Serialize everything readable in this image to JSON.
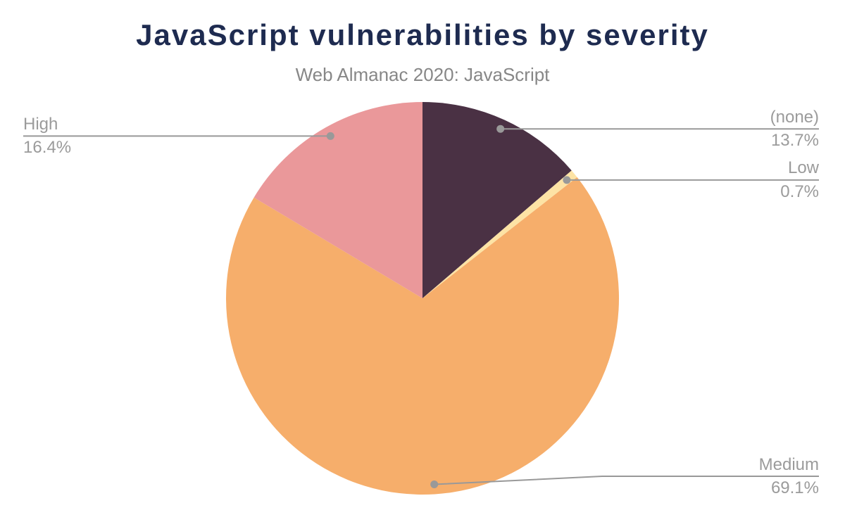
{
  "header": {
    "title": "JavaScript vulnerabilities by severity",
    "subtitle": "Web Almanac 2020: JavaScript"
  },
  "chart_data": {
    "type": "pie",
    "title": "JavaScript vulnerabilities by severity",
    "subtitle": "Web Almanac 2020: JavaScript",
    "direction": "clockwise",
    "start_angle_deg": 0,
    "legend_position": "none",
    "label_style": "outside-callout",
    "slices": [
      {
        "label": "(none)",
        "value_pct": 13.7,
        "display": "13.7%",
        "color": "#4A3144"
      },
      {
        "label": "Low",
        "value_pct": 0.7,
        "display": "0.7%",
        "color": "#FDE3A5"
      },
      {
        "label": "Medium",
        "value_pct": 69.1,
        "display": "69.1%",
        "color": "#F6AE6B"
      },
      {
        "label": "High",
        "value_pct": 16.4,
        "display": "16.4%",
        "color": "#EA989A"
      }
    ],
    "colors": {
      "title": "#1E2B50",
      "subtitle": "#878787",
      "label_text": "#9B9B9B",
      "callout_line": "#999999",
      "background": "#FFFFFF"
    }
  }
}
